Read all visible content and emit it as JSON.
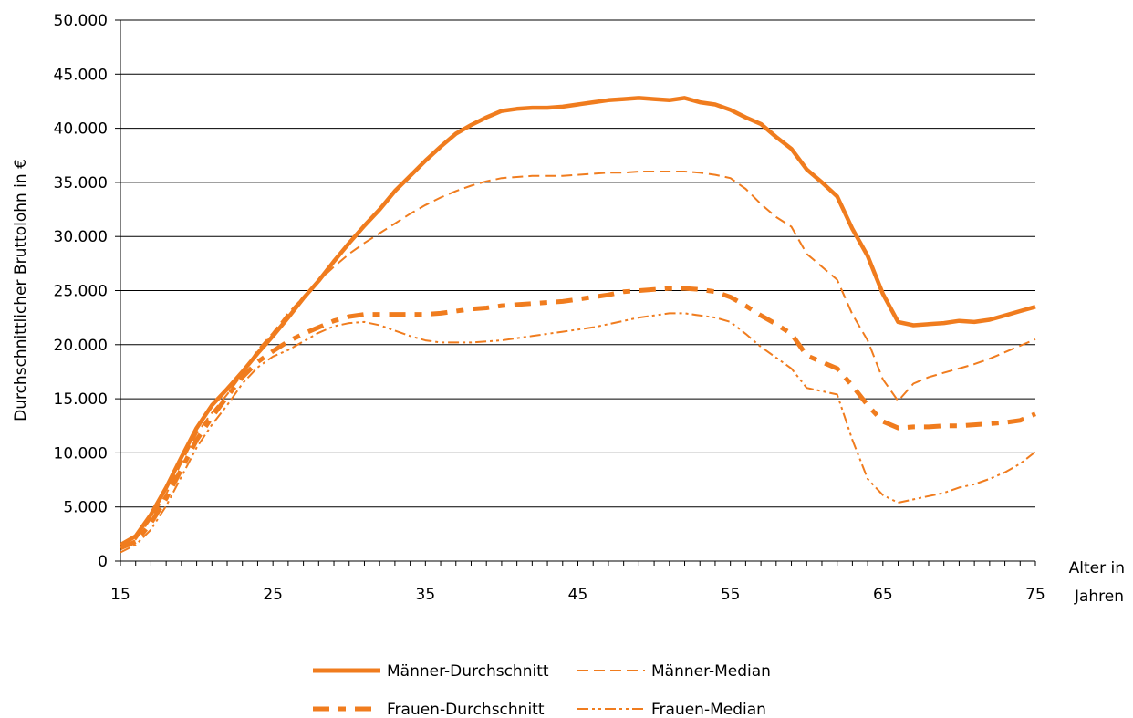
{
  "chart_data": {
    "type": "line",
    "xlabel": "Alter in Jahren",
    "xlabel_lines": [
      "Alter in",
      "Jahren"
    ],
    "ylabel": "Durchschnittlicher Bruttolohn in €",
    "x_ticks": [
      15,
      25,
      35,
      45,
      55,
      65,
      75
    ],
    "x_tick_labels": [
      "15",
      "25",
      "35",
      "45",
      "55",
      "65",
      "75"
    ],
    "y_ticks": [
      0,
      5000,
      10000,
      15000,
      20000,
      25000,
      30000,
      35000,
      40000,
      45000,
      50000
    ],
    "y_tick_labels": [
      "0",
      "5.000",
      "10.000",
      "15.000",
      "20.000",
      "25.000",
      "30.000",
      "35.000",
      "40.000",
      "45.000",
      "50.000"
    ],
    "xlim": [
      15,
      75
    ],
    "ylim": [
      0,
      50000
    ],
    "grid": "horizontal",
    "legend_position": "bottom",
    "color": "#F07C1E",
    "x": [
      15,
      16,
      17,
      18,
      19,
      20,
      21,
      22,
      23,
      24,
      25,
      26,
      27,
      28,
      29,
      30,
      31,
      32,
      33,
      34,
      35,
      36,
      37,
      38,
      39,
      40,
      41,
      42,
      43,
      44,
      45,
      46,
      47,
      48,
      49,
      50,
      51,
      52,
      53,
      54,
      55,
      56,
      57,
      58,
      59,
      60,
      61,
      62,
      63,
      64,
      65,
      66,
      67,
      68,
      69,
      70,
      71,
      72,
      73,
      74,
      75
    ],
    "series": [
      {
        "name": "Männer-Durchschnitt",
        "style": "solid-thick",
        "values": [
          1500,
          2300,
          4300,
          6800,
          9600,
          12300,
          14400,
          15900,
          17500,
          19200,
          20800,
          22500,
          24300,
          25900,
          27700,
          29400,
          31000,
          32500,
          34200,
          35600,
          37000,
          38300,
          39500,
          40300,
          41000,
          41600,
          41800,
          41900,
          41900,
          42000,
          42200,
          42400,
          42600,
          42700,
          42800,
          42700,
          42600,
          42800,
          42400,
          42200,
          41700,
          41000,
          40400,
          39200,
          38100,
          36200,
          35000,
          33700,
          30700,
          28200,
          24700,
          22100,
          21800,
          21900,
          22000,
          22200,
          22100,
          22300,
          22700,
          23100,
          23500
        ]
      },
      {
        "name": "Männer-Median",
        "style": "dashed-thin",
        "values": [
          1300,
          2000,
          3900,
          6200,
          9100,
          11800,
          13700,
          15400,
          17300,
          19500,
          21100,
          22900,
          24400,
          25900,
          27200,
          28400,
          29400,
          30300,
          31200,
          32100,
          32900,
          33600,
          34200,
          34700,
          35100,
          35400,
          35500,
          35600,
          35600,
          35600,
          35700,
          35800,
          35900,
          35900,
          36000,
          36000,
          36000,
          36000,
          35900,
          35700,
          35400,
          34400,
          33000,
          31800,
          30900,
          28400,
          27200,
          26000,
          22800,
          20400,
          16800,
          14800,
          16400,
          17000,
          17400,
          17800,
          18200,
          18700,
          19300,
          19900,
          20500
        ]
      },
      {
        "name": "Frauen-Durchschnitt",
        "style": "dashed-thick",
        "values": [
          1200,
          1800,
          3500,
          5800,
          8500,
          11200,
          13300,
          15200,
          17000,
          18400,
          19400,
          20300,
          21000,
          21600,
          22200,
          22600,
          22800,
          22800,
          22800,
          22800,
          22800,
          22900,
          23100,
          23300,
          23400,
          23600,
          23700,
          23800,
          23900,
          24000,
          24200,
          24400,
          24600,
          24900,
          25000,
          25100,
          25200,
          25200,
          25100,
          24900,
          24400,
          23600,
          22700,
          21900,
          21000,
          19000,
          18400,
          17800,
          16200,
          14400,
          12900,
          12300,
          12400,
          12400,
          12500,
          12500,
          12600,
          12700,
          12800,
          13000,
          13600
        ]
      },
      {
        "name": "Frauen-Median",
        "style": "dashdot-thin",
        "values": [
          800,
          1500,
          2900,
          5100,
          7800,
          10500,
          12600,
          14400,
          16400,
          17900,
          18900,
          19500,
          20300,
          21100,
          21700,
          22000,
          22100,
          21800,
          21300,
          20800,
          20400,
          20200,
          20200,
          20200,
          20300,
          20400,
          20600,
          20800,
          21000,
          21200,
          21400,
          21600,
          21900,
          22200,
          22500,
          22700,
          22900,
          22900,
          22700,
          22500,
          22100,
          21000,
          19800,
          18800,
          17800,
          16000,
          15700,
          15400,
          11200,
          7600,
          6100,
          5400,
          5700,
          6000,
          6300,
          6800,
          7100,
          7600,
          8200,
          9000,
          10100
        ]
      }
    ]
  }
}
